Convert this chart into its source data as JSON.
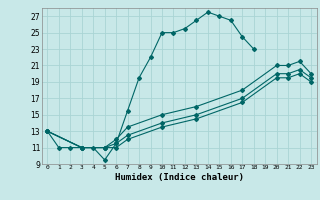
{
  "xlabel": "Humidex (Indice chaleur)",
  "bg_color": "#c8e8e8",
  "line_color": "#006666",
  "grid_color": "#aad4d4",
  "ylim": [
    9,
    28
  ],
  "xlim": [
    -0.5,
    23.5
  ],
  "yticks": [
    9,
    11,
    13,
    15,
    17,
    19,
    21,
    23,
    25,
    27
  ],
  "xticks": [
    0,
    1,
    2,
    3,
    4,
    5,
    6,
    7,
    8,
    9,
    10,
    11,
    12,
    13,
    14,
    15,
    16,
    17,
    18,
    19,
    20,
    21,
    22,
    23
  ],
  "lines": [
    {
      "x": [
        0,
        1,
        2,
        3,
        4,
        5,
        6,
        7,
        8,
        9,
        10,
        11,
        12,
        13,
        14,
        15,
        16,
        17,
        18
      ],
      "y": [
        13,
        11,
        11,
        11,
        11,
        9.5,
        11.5,
        15.5,
        19.5,
        22,
        25,
        25,
        25.5,
        26.5,
        27.5,
        27,
        26.5,
        24.5,
        23
      ]
    },
    {
      "x": [
        0,
        3,
        5,
        6,
        7,
        10,
        13,
        17,
        20,
        21,
        22,
        23
      ],
      "y": [
        13,
        11,
        11,
        12,
        13.5,
        15,
        16,
        18,
        21,
        21,
        21.5,
        20
      ]
    },
    {
      "x": [
        0,
        3,
        5,
        6,
        7,
        10,
        13,
        17,
        20,
        21,
        22,
        23
      ],
      "y": [
        13,
        11,
        11,
        11.5,
        12.5,
        14,
        15,
        17,
        20,
        20,
        20.5,
        19.5
      ]
    },
    {
      "x": [
        0,
        3,
        5,
        6,
        7,
        10,
        13,
        17,
        20,
        21,
        22,
        23
      ],
      "y": [
        13,
        11,
        11,
        11,
        12,
        13.5,
        14.5,
        16.5,
        19.5,
        19.5,
        20,
        19
      ]
    }
  ]
}
